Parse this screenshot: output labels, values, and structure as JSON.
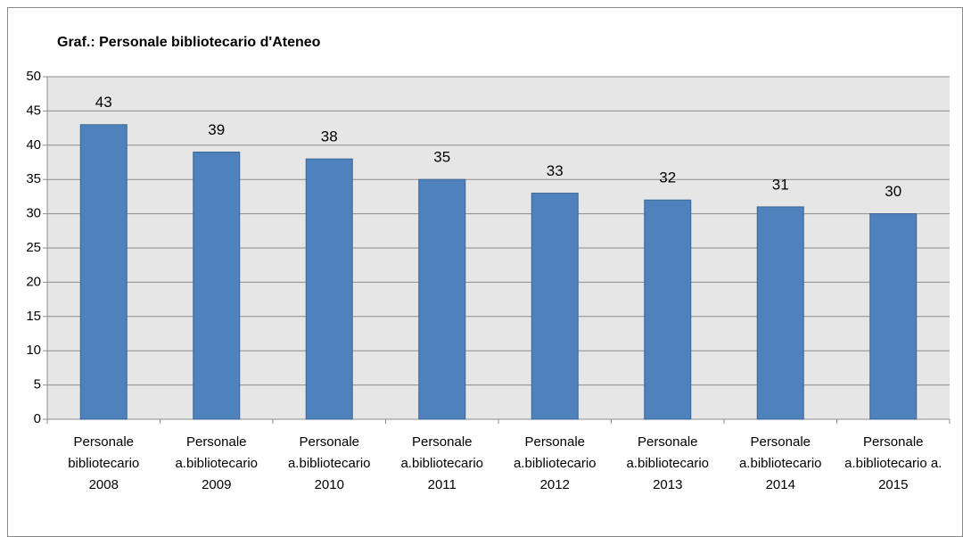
{
  "chart_data": {
    "type": "bar",
    "title": "Graf.: Personale bibliotecario d'Ateneo",
    "categories": [
      [
        "Personale",
        "bibliotecario",
        "2008"
      ],
      [
        "Personale",
        "a.bibliotecario",
        "2009"
      ],
      [
        "Personale",
        "a.bibliotecario",
        "2010"
      ],
      [
        "Personale",
        "a.bibliotecario",
        "2011"
      ],
      [
        "Personale",
        "a.bibliotecario",
        "2012"
      ],
      [
        "Personale",
        "a.bibliotecario",
        "2013"
      ],
      [
        "Personale",
        "a.bibliotecario",
        "2014"
      ],
      [
        "Personale",
        "a.bibliotecario a.",
        "2015"
      ]
    ],
    "values": [
      43,
      39,
      38,
      35,
      33,
      32,
      31,
      30
    ],
    "color": "#4f81bd",
    "ylim": [
      0,
      50
    ],
    "yticks": [
      0,
      5,
      10,
      15,
      20,
      25,
      30,
      35,
      40,
      45,
      50
    ],
    "grid": true
  }
}
